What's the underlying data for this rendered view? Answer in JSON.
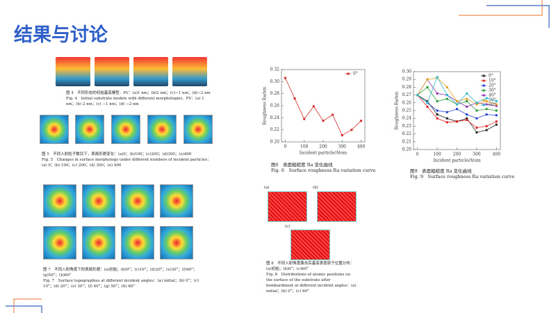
{
  "title": "结果与讨论",
  "figures": {
    "fig4": {
      "cn": "图 4　不同形态的初始基底模型．PV：(a)1 nm；(b)2 nm；(c)−1 nm；(d)−2 nm",
      "en": "Fig. 4　Initial substrate models with different morphologies．PV：(a) 1 nm；(b) 2 nm；(c) −1 nm；(d) −2 nm"
    },
    "fig5": {
      "cn": "图 5　不同入射粒子数目下，表面形貌变化：(a)0；(b)100；(c)200；(d)300；(e)400",
      "en": "Fig. 5　Changes in surface morphology under different numbers of incident particles：(a) 0；(b) 100；(c) 200；(d) 300；(e) 400"
    },
    "fig7": {
      "cn": "图 7　不同入射角度下的表面形貌：(a)初始；(b)0°；(c)10°；(d)20°；(e)30°；(f)40°；(g)50°；(h)60°",
      "en": "Fig. 7　Surface topographies at different incident angles：(a) initial；(b) 0°；(c) 10°；(d) 20°；(e) 30°；(f) 40°；(g) 50°；(h) 60°"
    },
    "fig8": {
      "panels": [
        "(a)",
        "(b)",
        "(c)"
      ],
      "cn": "图 8　不同入射角度轰击后基底表层原子位置分布：(a)初始；(b)0°；(c)60°",
      "en": "Fig. 8　Distributions of atomic positions on the surface of the substrate after bombardment at different incident angles：(a) initial；(b) 0°；(c) 60°"
    },
    "fig6": {
      "cn": "图6　表面粗糙度 Ra 变化曲线",
      "en": "Fig. 6　Surface roughness Ra variation curve"
    },
    "fig9": {
      "cn": "图9　表面粗糙度 Ra 变化曲线",
      "en": "Fig. 9　Surface roughness Ra variation curve"
    }
  },
  "chart_data": [
    {
      "type": "line",
      "x_label": "Incident particle/Atom",
      "y_label": "Roughness Ra/nm",
      "x": [
        0,
        50,
        100,
        150,
        200,
        250,
        300,
        350,
        400
      ],
      "series": [
        {
          "name": "0°",
          "color": "#d22b2b",
          "values": [
            0.306,
            0.272,
            0.238,
            0.259,
            0.235,
            0.245,
            0.211,
            0.22,
            0.235
          ]
        }
      ],
      "xlim": [
        -20,
        420
      ],
      "xticks": [
        0,
        100,
        200,
        300,
        400
      ],
      "ylim": [
        0.2,
        0.32
      ],
      "yticks": [
        {
          "value": 0.2,
          "label": "0.20"
        },
        0.22,
        0.24,
        0.26,
        0.28,
        {
          "value": 0.3,
          "label": "0.30"
        },
        0.32
      ],
      "legend": "upper right"
    },
    {
      "type": "line",
      "x_label": "Incident particle/Atom",
      "y_label": "Roughness Ra/nm",
      "x": [
        0,
        50,
        100,
        150,
        200,
        250,
        300,
        350,
        400
      ],
      "series": [
        {
          "name": "0°",
          "color": "#222222",
          "values": [
            0.27,
            0.262,
            0.245,
            0.24,
            0.236,
            0.24,
            0.222,
            0.225,
            0.232
          ]
        },
        {
          "name": "10°",
          "color": "#e02020",
          "values": [
            0.27,
            0.255,
            0.24,
            0.235,
            0.236,
            0.238,
            0.228,
            0.23,
            0.236
          ]
        },
        {
          "name": "20°",
          "color": "#2040d0",
          "values": [
            0.27,
            0.26,
            0.25,
            0.248,
            0.252,
            0.245,
            0.24,
            0.245,
            0.244
          ]
        },
        {
          "name": "30°",
          "color": "#2a9a3a",
          "values": [
            0.27,
            0.28,
            0.262,
            0.265,
            0.258,
            0.262,
            0.25,
            0.252,
            0.25
          ]
        },
        {
          "name": "40°",
          "color": "#9030b0",
          "values": [
            0.27,
            0.29,
            0.272,
            0.27,
            0.262,
            0.255,
            0.26,
            0.258,
            0.256
          ]
        },
        {
          "name": "50°",
          "color": "#e5a020",
          "values": [
            0.27,
            0.29,
            0.292,
            0.28,
            0.262,
            0.265,
            0.258,
            0.262,
            0.258
          ]
        },
        {
          "name": "60°",
          "color": "#30b8c8",
          "values": [
            0.27,
            0.26,
            0.293,
            0.27,
            0.258,
            0.272,
            0.26,
            0.266,
            0.262
          ]
        }
      ],
      "xlim": [
        -20,
        420
      ],
      "xticks": [
        0,
        100,
        200,
        300,
        400
      ],
      "ylim": [
        0.2,
        0.3
      ],
      "yticks": [
        {
          "value": 0.2,
          "label": "0.20"
        },
        0.21,
        0.22,
        0.23,
        0.24,
        0.25,
        0.26,
        0.27,
        0.28,
        0.29,
        {
          "value": 0.3,
          "label": "0.30"
        }
      ],
      "legend": "upper right"
    }
  ]
}
